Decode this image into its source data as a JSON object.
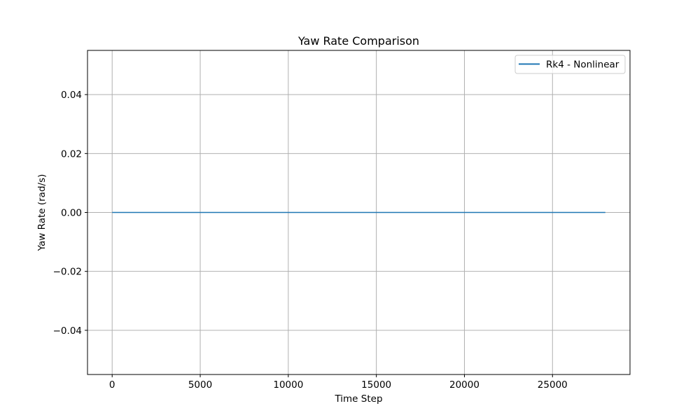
{
  "chart_data": {
    "type": "line",
    "title": "Yaw Rate Comparison",
    "xlabel": "Time Step",
    "ylabel": "Yaw Rate (rad/s)",
    "xlim": [
      -1400,
      29400
    ],
    "ylim": [
      -0.055,
      0.055
    ],
    "x_ticks": [
      0,
      5000,
      10000,
      15000,
      20000,
      25000
    ],
    "x_tick_labels": [
      "0",
      "5000",
      "10000",
      "15000",
      "20000",
      "25000"
    ],
    "y_ticks": [
      -0.04,
      -0.02,
      0.0,
      0.02,
      0.04
    ],
    "y_tick_labels": [
      "−0.04",
      "−0.02",
      "0.00",
      "0.02",
      "0.04"
    ],
    "grid": true,
    "legend_position": "top-right",
    "series": [
      {
        "name": "Rk4 - Nonlinear",
        "color": "#1f77b4",
        "x": [
          0,
          28000
        ],
        "y": [
          0.0,
          0.0
        ]
      }
    ]
  }
}
